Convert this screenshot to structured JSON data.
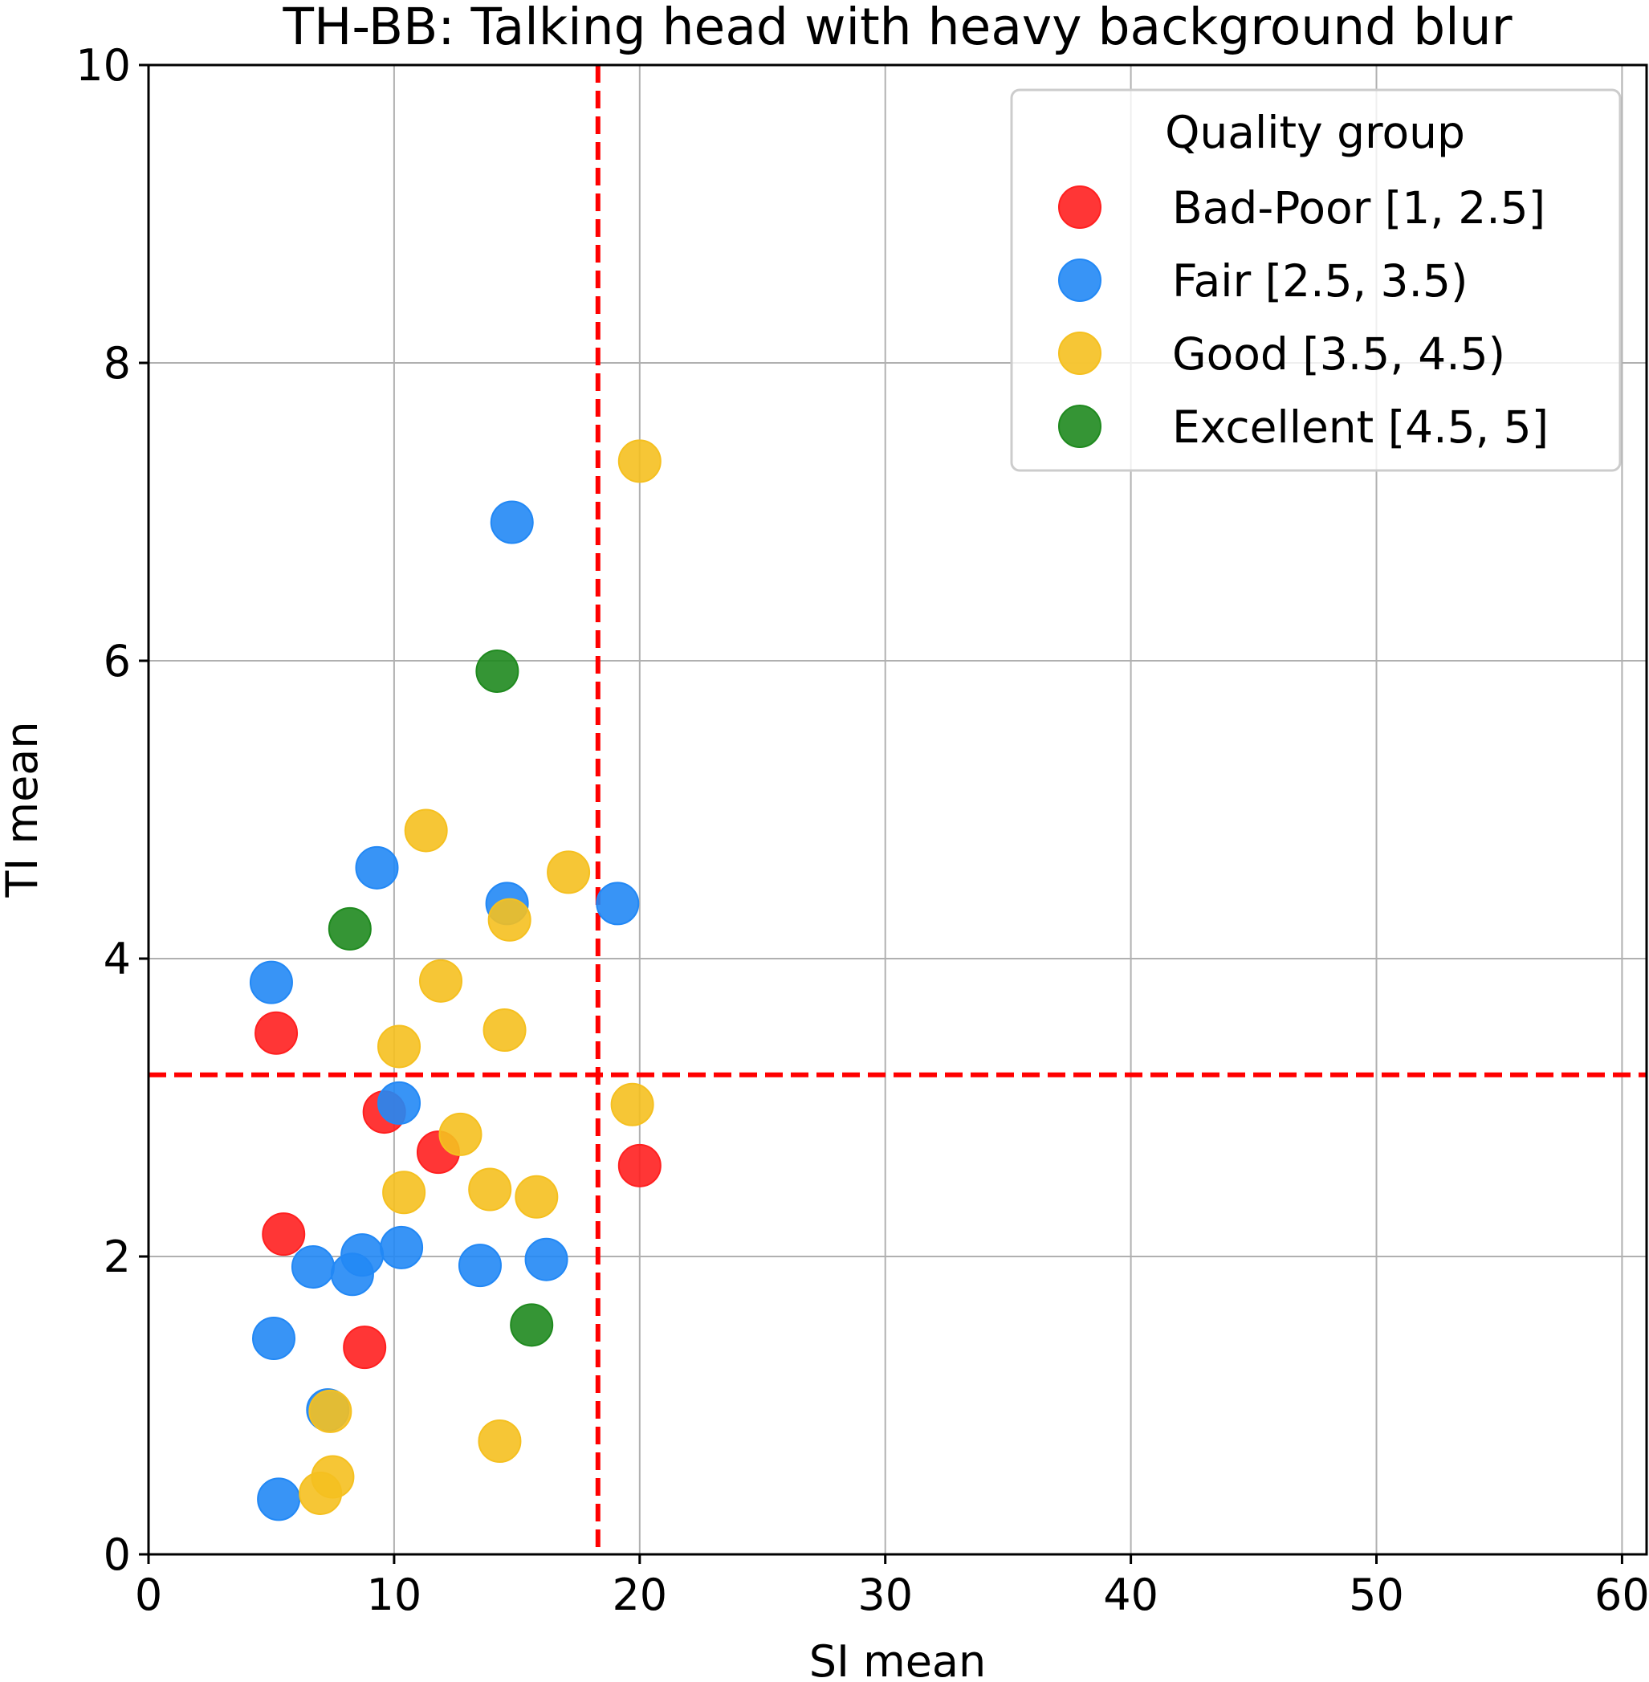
{
  "chart_data": {
    "type": "scatter",
    "title": "TH-BB: Talking head with heavy background blur",
    "xlabel": "SI mean",
    "ylabel": "TI mean",
    "xlim": [
      0,
      61
    ],
    "ylim": [
      0,
      10
    ],
    "xticks": [
      0,
      10,
      20,
      30,
      40,
      50,
      60
    ],
    "yticks": [
      0,
      2,
      4,
      6,
      8,
      10
    ],
    "grid": true,
    "legend": {
      "title": "Quality group",
      "position": "top-right"
    },
    "thresholds": {
      "vertical_x": 18.3,
      "horizontal_y": 3.22,
      "color": "#ff0000",
      "style": "dashed"
    },
    "series": [
      {
        "name": "Bad-Poor [1, 2.5]",
        "color": "#ff2020",
        "points": [
          {
            "x": 5.2,
            "y": 3.5
          },
          {
            "x": 9.6,
            "y": 2.97
          },
          {
            "x": 11.8,
            "y": 2.7
          },
          {
            "x": 5.5,
            "y": 2.15
          },
          {
            "x": 8.8,
            "y": 1.39
          },
          {
            "x": 20.0,
            "y": 2.61
          }
        ]
      },
      {
        "name": "Fair [2.5, 3.5)",
        "color": "#2288f5",
        "points": [
          {
            "x": 14.8,
            "y": 6.93
          },
          {
            "x": 9.3,
            "y": 4.61
          },
          {
            "x": 14.6,
            "y": 4.37
          },
          {
            "x": 19.1,
            "y": 4.37
          },
          {
            "x": 5.0,
            "y": 3.84
          },
          {
            "x": 10.2,
            "y": 3.03
          },
          {
            "x": 6.7,
            "y": 1.93
          },
          {
            "x": 8.7,
            "y": 2.01
          },
          {
            "x": 8.3,
            "y": 1.88
          },
          {
            "x": 10.3,
            "y": 2.06
          },
          {
            "x": 13.5,
            "y": 1.94
          },
          {
            "x": 16.2,
            "y": 1.98
          },
          {
            "x": 5.1,
            "y": 1.45
          },
          {
            "x": 7.3,
            "y": 0.97
          },
          {
            "x": 5.3,
            "y": 0.37
          }
        ]
      },
      {
        "name": "Good [3.5, 4.5)",
        "color": "#f5c020",
        "points": [
          {
            "x": 20.0,
            "y": 7.34
          },
          {
            "x": 11.3,
            "y": 4.86
          },
          {
            "x": 17.1,
            "y": 4.58
          },
          {
            "x": 14.7,
            "y": 4.26
          },
          {
            "x": 11.9,
            "y": 3.85
          },
          {
            "x": 14.5,
            "y": 3.52
          },
          {
            "x": 10.2,
            "y": 3.41
          },
          {
            "x": 19.7,
            "y": 3.02
          },
          {
            "x": 12.7,
            "y": 2.82
          },
          {
            "x": 10.4,
            "y": 2.43
          },
          {
            "x": 13.9,
            "y": 2.45
          },
          {
            "x": 15.8,
            "y": 2.4
          },
          {
            "x": 7.4,
            "y": 0.96
          },
          {
            "x": 14.3,
            "y": 0.76
          },
          {
            "x": 7.5,
            "y": 0.52
          },
          {
            "x": 7.0,
            "y": 0.41
          }
        ]
      },
      {
        "name": "Excellent [4.5, 5]",
        "color": "#1f8a1f",
        "points": [
          {
            "x": 14.2,
            "y": 5.93
          },
          {
            "x": 8.2,
            "y": 4.2
          },
          {
            "x": 15.6,
            "y": 1.54
          }
        ]
      }
    ]
  }
}
